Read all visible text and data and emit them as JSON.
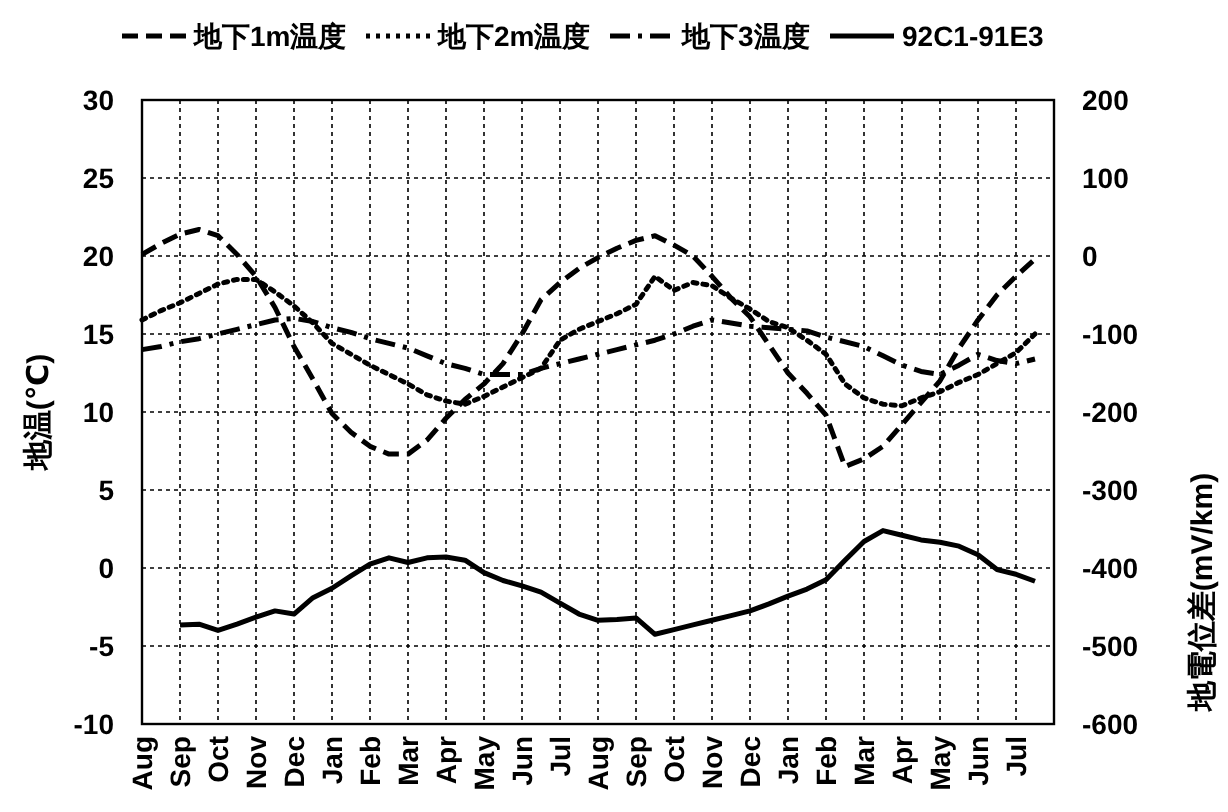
{
  "chart_data": {
    "type": "line",
    "ylabel": "地温(℃)",
    "y2label": "地電位差(mV/km)",
    "legend": "top",
    "grid": true,
    "ylim": [
      -10,
      30
    ],
    "yticks": [
      -10,
      -5,
      0,
      5,
      10,
      15,
      20,
      25,
      30
    ],
    "y2lim": [
      -600,
      200
    ],
    "y2ticks": [
      -600,
      -500,
      -400,
      -300,
      -200,
      -100,
      0,
      100,
      200
    ],
    "categories": [
      "Aug",
      null,
      "Sep",
      null,
      "Oct",
      null,
      "Nov",
      null,
      "Dec",
      null,
      "Jan",
      null,
      "Feb",
      null,
      "Mar",
      null,
      "Apr",
      null,
      "May",
      null,
      "Jun",
      null,
      "Jul",
      null,
      "Aug",
      null,
      "Sep",
      null,
      "Oct",
      null,
      "Nov",
      null,
      "Dec",
      null,
      "Jan",
      null,
      "Feb",
      null,
      "Mar",
      null,
      "Apr",
      null,
      "May",
      null,
      "Jun",
      null,
      "Jul",
      null
    ],
    "series": [
      {
        "name": "地下1m温度",
        "color": "#000000",
        "line_style": "dashed",
        "values": [
          20.1,
          20.8,
          21.4,
          21.7,
          21.3,
          20.1,
          18.7,
          16.7,
          14.2,
          12.1,
          9.9,
          8.7,
          7.8,
          7.3,
          7.3,
          8.2,
          9.6,
          10.8,
          11.8,
          13.1,
          15,
          17.2,
          18.3,
          19.2,
          19.9,
          20.5,
          21,
          21.3,
          20.7,
          20,
          18.7,
          17.3,
          16.1,
          14.3,
          12.5,
          11.2,
          9.8,
          6.5,
          7,
          7.8,
          9.2,
          10.6,
          12,
          14.1,
          15.9,
          17.5,
          18.7,
          19.8
        ]
      },
      {
        "name": "地下2m温度",
        "color": "#000000",
        "line_style": "dotted",
        "values": [
          15.9,
          16.5,
          17,
          17.6,
          18.2,
          18.5,
          18.5,
          17.7,
          16.8,
          15.7,
          14.4,
          13.7,
          13,
          12.4,
          11.8,
          11.1,
          10.7,
          10.5,
          11,
          11.6,
          12.2,
          12.8,
          14.6,
          15.3,
          15.8,
          16.3,
          16.9,
          18.7,
          17.8,
          18.3,
          18.1,
          17.3,
          16.6,
          15.8,
          15.4,
          14.6,
          13.7,
          11.8,
          10.9,
          10.5,
          10.4,
          10.9,
          11.3,
          11.9,
          12.4,
          13.1,
          13.8,
          15
        ]
      },
      {
        "name": "地下3温度",
        "color": "#000000",
        "line_style": "dashdot",
        "values": [
          14,
          14.2,
          14.5,
          14.7,
          15,
          15.3,
          15.6,
          15.9,
          16,
          15.8,
          15.4,
          15.1,
          14.7,
          14.4,
          14.1,
          13.6,
          13.1,
          12.8,
          12.4,
          12.4,
          12.4,
          12.8,
          13.1,
          13.4,
          13.7,
          14,
          14.3,
          14.6,
          15,
          15.5,
          15.9,
          15.7,
          15.5,
          15.4,
          15.3,
          15.2,
          14.8,
          14.5,
          14.2,
          13.6,
          13,
          12.6,
          12.4,
          13,
          13.7,
          13.3,
          13.1,
          13.4
        ]
      },
      {
        "name": "92C1-91E3",
        "color": "#000000",
        "line_style": "solid",
        "axis": "y2",
        "values": [
          null,
          null,
          -473,
          -472,
          -480,
          -472,
          -463,
          -455,
          -459,
          -438,
          -426,
          -410,
          -395,
          -387,
          -393,
          -387,
          -386,
          -390,
          -406,
          -416,
          -423,
          -431,
          -445,
          -459,
          -467,
          -466,
          -464,
          -485,
          -479,
          -473,
          -467,
          -461,
          -455,
          -446,
          -436,
          -427,
          -415,
          -390,
          -366,
          -352,
          -358,
          -364,
          -367,
          -372,
          -383,
          -402,
          -408,
          -417
        ]
      }
    ]
  }
}
